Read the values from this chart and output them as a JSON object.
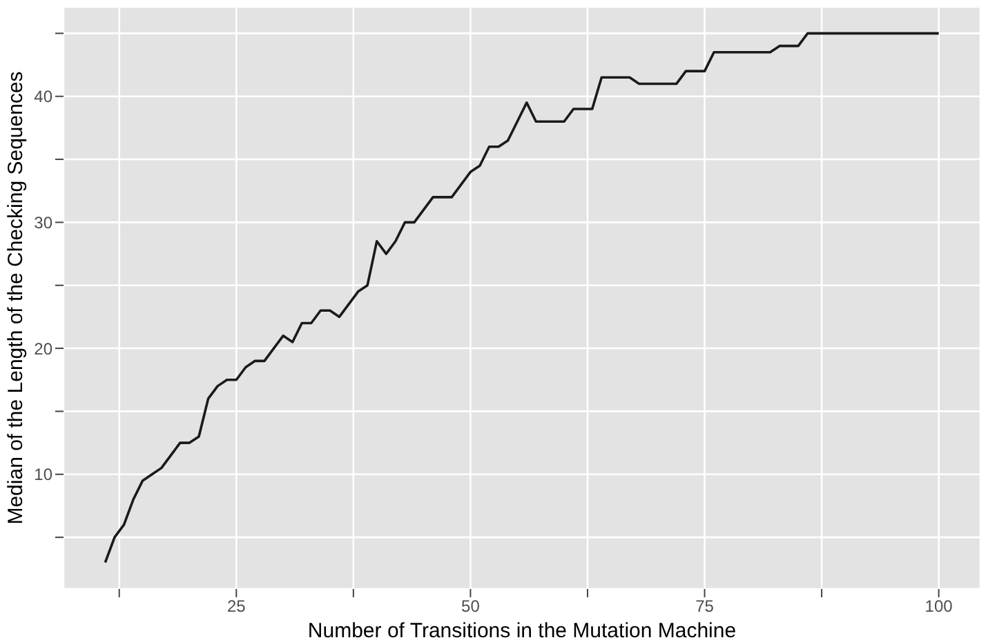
{
  "chart_data": {
    "type": "line",
    "xlabel": "Number of Transitions in the Mutation Machine",
    "ylabel": "Median of the Length of the Checking Sequences",
    "x": [
      11,
      12,
      13,
      14,
      15,
      16,
      17,
      18,
      19,
      20,
      21,
      22,
      23,
      24,
      25,
      26,
      27,
      28,
      29,
      30,
      31,
      32,
      33,
      34,
      35,
      36,
      37,
      38,
      39,
      40,
      41,
      42,
      43,
      44,
      45,
      46,
      47,
      48,
      49,
      50,
      51,
      52,
      53,
      54,
      55,
      56,
      57,
      58,
      59,
      60,
      61,
      62,
      63,
      64,
      65,
      66,
      67,
      68,
      69,
      70,
      71,
      72,
      73,
      74,
      75,
      76,
      77,
      78,
      79,
      80,
      81,
      82,
      83,
      84,
      85,
      86,
      87,
      88,
      89,
      90,
      91,
      92,
      93,
      94,
      95,
      96,
      97,
      98,
      99,
      100
    ],
    "series": [
      {
        "color": "#1a1a1a",
        "values": [
          3,
          5,
          6,
          8,
          9.5,
          10,
          10.5,
          11.5,
          12.5,
          12.5,
          13,
          16,
          17,
          17.5,
          17.5,
          18.5,
          19,
          19,
          20,
          21,
          20.5,
          22,
          22,
          23,
          23,
          22.5,
          23.5,
          24.5,
          25,
          28.5,
          27.5,
          28.5,
          30,
          30,
          31,
          32,
          32,
          32,
          33,
          34,
          34.5,
          36,
          36,
          36.5,
          38,
          39.5,
          38,
          38,
          38,
          38,
          39,
          39,
          39,
          41.5,
          41.5,
          41.5,
          41.5,
          41,
          41,
          41,
          41,
          41,
          42,
          42,
          42,
          43.5,
          43.5,
          43.5,
          43.5,
          43.5,
          43.5,
          43.5,
          44,
          44,
          44,
          45,
          45,
          45,
          45,
          45,
          45,
          45,
          45,
          45,
          45,
          45,
          45,
          45,
          45,
          45
        ]
      }
    ],
    "xlim": [
      6.55,
      104.45
    ],
    "xticks": [
      {
        "value": 12.5,
        "label": null
      },
      25,
      {
        "value": 37.5,
        "label": null
      },
      50,
      {
        "value": 62.5,
        "label": null
      },
      75,
      {
        "value": 87.5,
        "label": null
      },
      100
    ],
    "ylim": [
      0.9,
      47.1
    ],
    "yticks": [
      {
        "value": 5,
        "label": null
      },
      10,
      {
        "value": 15,
        "label": null
      },
      20,
      {
        "value": 25,
        "label": null
      },
      30,
      {
        "value": 35,
        "label": null
      },
      40,
      {
        "value": 45,
        "label": null
      }
    ],
    "grid": true,
    "legend": false,
    "marker": "none",
    "line_style": "solid"
  }
}
